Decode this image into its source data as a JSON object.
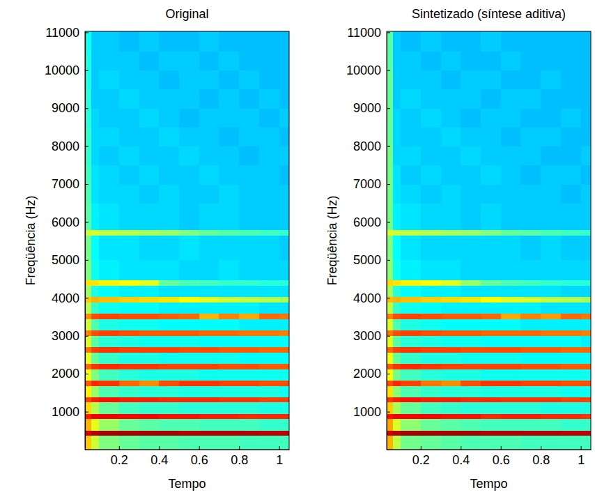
{
  "chart_data": [
    {
      "type": "heatmap",
      "title": "Original",
      "x_label": "Tempo",
      "y_label": "Freqüência (Hz)",
      "xlim": [
        0.03,
        1.05
      ],
      "ylim": [
        0,
        11025
      ],
      "xticks": [
        0.2,
        0.4,
        0.6,
        0.8,
        1
      ],
      "yticks": [
        1000,
        2000,
        3000,
        4000,
        5000,
        6000,
        7000,
        8000,
        9000,
        10000,
        11000
      ],
      "zlim": [
        -100,
        -20
      ],
      "x_edges": [
        0.03,
        0.06,
        0.1,
        0.2,
        0.3,
        0.4,
        0.5,
        0.6,
        0.7,
        0.8,
        0.9,
        1.0,
        1.05
      ],
      "y_edges": [
        0,
        370,
        510,
        810,
        950,
        1250,
        1390,
        1690,
        1830,
        2130,
        2270,
        2570,
        2710,
        3010,
        3150,
        3450,
        3590,
        3890,
        4030,
        4330,
        4470,
        5000,
        5650,
        5790,
        6500,
        7000,
        7500,
        8000,
        8500,
        9000,
        9500,
        10000,
        10500,
        11025
      ],
      "cells": [
        [
          -46,
          -54,
          -60,
          -62,
          -63,
          -63,
          -64,
          -64,
          -64,
          -65,
          -65,
          -65
        ],
        [
          -27,
          -24,
          -23,
          -23,
          -23,
          -23,
          -24,
          -24,
          -24,
          -24,
          -25,
          -25
        ],
        [
          -44,
          -52,
          -58,
          -62,
          -63,
          -64,
          -64,
          -65,
          -65,
          -65,
          -66,
          -66
        ],
        [
          -32,
          -29,
          -29,
          -30,
          -30,
          -31,
          -31,
          -32,
          -32,
          -33,
          -33,
          -33
        ],
        [
          -47,
          -56,
          -62,
          -65,
          -66,
          -66,
          -67,
          -67,
          -67,
          -67,
          -68,
          -68
        ],
        [
          -35,
          -32,
          -31,
          -32,
          -32,
          -33,
          -33,
          -33,
          -34,
          -34,
          -35,
          -35
        ],
        [
          -49,
          -58,
          -64,
          -66,
          -67,
          -67,
          -68,
          -68,
          -68,
          -68,
          -68,
          -69
        ],
        [
          -37,
          -33,
          -34,
          -38,
          -41,
          -36,
          -34,
          -34,
          -35,
          -35,
          -36,
          -36
        ],
        [
          -51,
          -60,
          -65,
          -67,
          -68,
          -68,
          -68,
          -69,
          -69,
          -69,
          -69,
          -69
        ],
        [
          -38,
          -34,
          -33,
          -34,
          -34,
          -35,
          -35,
          -35,
          -36,
          -36,
          -37,
          -37
        ],
        [
          -52,
          -62,
          -66,
          -68,
          -68,
          -69,
          -69,
          -69,
          -69,
          -70,
          -70,
          -70
        ],
        [
          -39,
          -35,
          -34,
          -35,
          -35,
          -35,
          -36,
          -36,
          -37,
          -37,
          -38,
          -38
        ],
        [
          -53,
          -63,
          -67,
          -68,
          -69,
          -69,
          -69,
          -70,
          -70,
          -70,
          -70,
          -70
        ],
        [
          -40,
          -36,
          -35,
          -36,
          -37,
          -37,
          -37,
          -38,
          -38,
          -39,
          -39,
          -40
        ],
        [
          -54,
          -64,
          -68,
          -69,
          -69,
          -70,
          -70,
          -70,
          -70,
          -71,
          -71,
          -71
        ],
        [
          -41,
          -36,
          -35,
          -36,
          -36,
          -37,
          -38,
          -44,
          -40,
          -43,
          -38,
          -39
        ],
        [
          -56,
          -66,
          -69,
          -70,
          -70,
          -71,
          -71,
          -71,
          -71,
          -71,
          -72,
          -72
        ],
        [
          -46,
          -44,
          -45,
          -46,
          -47,
          -48,
          -50,
          -52,
          -54,
          -55,
          -56,
          -57
        ],
        [
          -58,
          -68,
          -70,
          -71,
          -71,
          -72,
          -72,
          -72,
          -72,
          -72,
          -72,
          -72
        ],
        [
          -48,
          -48,
          -49,
          -50,
          -52,
          -62,
          -64,
          -65,
          -66,
          -66,
          -67,
          -67
        ],
        [
          -60,
          -69,
          -71,
          -72,
          -72,
          -72,
          -73,
          -73,
          -72,
          -73,
          -73,
          -73
        ],
        [
          -61,
          -70,
          -72,
          -72,
          -73,
          -73,
          -72,
          -73,
          -73,
          -73,
          -73,
          -74
        ],
        [
          -54,
          -53,
          -55,
          -56,
          -57,
          -58,
          -60,
          -62,
          -63,
          -64,
          -65,
          -66
        ],
        [
          -63,
          -71,
          -72,
          -73,
          -73,
          -73,
          -74,
          -73,
          -73,
          -74,
          -74,
          -74
        ],
        [
          -64,
          -72,
          -73,
          -73,
          -74,
          -73,
          -74,
          -74,
          -73,
          -74,
          -74,
          -74
        ],
        [
          -65,
          -72,
          -73,
          -74,
          -73,
          -74,
          -74,
          -73,
          -74,
          -74,
          -74,
          -75
        ],
        [
          -66,
          -73,
          -74,
          -73,
          -74,
          -74,
          -73,
          -74,
          -74,
          -75,
          -74,
          -74
        ],
        [
          -66,
          -73,
          -73,
          -74,
          -74,
          -73,
          -74,
          -74,
          -75,
          -74,
          -74,
          -75
        ],
        [
          -67,
          -73,
          -74,
          -74,
          -73,
          -74,
          -75,
          -74,
          -74,
          -74,
          -75,
          -74
        ],
        [
          -67,
          -74,
          -74,
          -73,
          -74,
          -74,
          -74,
          -75,
          -74,
          -75,
          -74,
          -75
        ],
        [
          -68,
          -74,
          -73,
          -74,
          -74,
          -75,
          -74,
          -74,
          -75,
          -74,
          -75,
          -75
        ],
        [
          -68,
          -74,
          -74,
          -74,
          -75,
          -74,
          -74,
          -75,
          -74,
          -75,
          -75,
          -75
        ],
        [
          -69,
          -74,
          -74,
          -75,
          -74,
          -75,
          -75,
          -74,
          -75,
          -75,
          -75,
          -75
        ]
      ]
    },
    {
      "type": "heatmap",
      "title": "Sintetizado (síntese aditiva)",
      "x_label": "Tempo",
      "y_label": "Freqüência (Hz)",
      "xlim": [
        0.03,
        1.05
      ],
      "ylim": [
        0,
        11025
      ],
      "xticks": [
        0.2,
        0.4,
        0.6,
        0.8,
        1
      ],
      "yticks": [
        1000,
        2000,
        3000,
        4000,
        5000,
        6000,
        7000,
        8000,
        9000,
        10000,
        11000
      ],
      "zlim": [
        -100,
        -20
      ],
      "x_edges": [
        0.03,
        0.06,
        0.1,
        0.2,
        0.3,
        0.4,
        0.5,
        0.6,
        0.7,
        0.8,
        0.9,
        1.0,
        1.05
      ],
      "y_edges": [
        0,
        370,
        510,
        810,
        950,
        1250,
        1390,
        1690,
        1830,
        2130,
        2270,
        2570,
        2710,
        3010,
        3150,
        3450,
        3590,
        3890,
        4030,
        4330,
        4470,
        5000,
        5650,
        5790,
        6500,
        7000,
        7500,
        8000,
        8500,
        9000,
        9500,
        10000,
        10500,
        11025
      ],
      "cells": [
        [
          -44,
          -55,
          -61,
          -62,
          -63,
          -64,
          -64,
          -64,
          -65,
          -65,
          -65,
          -65
        ],
        [
          -26,
          -24,
          -23,
          -23,
          -23,
          -23,
          -24,
          -24,
          -24,
          -24,
          -25,
          -25
        ],
        [
          -43,
          -53,
          -59,
          -62,
          -63,
          -64,
          -65,
          -65,
          -65,
          -65,
          -66,
          -66
        ],
        [
          -31,
          -29,
          -30,
          -30,
          -31,
          -31,
          -33,
          -32,
          -32,
          -33,
          -33,
          -34
        ],
        [
          -46,
          -57,
          -62,
          -65,
          -66,
          -67,
          -67,
          -67,
          -67,
          -68,
          -68,
          -68
        ],
        [
          -34,
          -32,
          -31,
          -32,
          -32,
          -33,
          -33,
          -34,
          -34,
          -34,
          -35,
          -35
        ],
        [
          -48,
          -59,
          -64,
          -66,
          -67,
          -67,
          -68,
          -68,
          -68,
          -68,
          -69,
          -69
        ],
        [
          -36,
          -33,
          -35,
          -39,
          -41,
          -36,
          -34,
          -34,
          -35,
          -35,
          -36,
          -36
        ],
        [
          -50,
          -61,
          -65,
          -67,
          -68,
          -68,
          -69,
          -69,
          -69,
          -69,
          -69,
          -69
        ],
        [
          -37,
          -34,
          -33,
          -34,
          -35,
          -35,
          -35,
          -35,
          -36,
          -36,
          -37,
          -37
        ],
        [
          -51,
          -62,
          -66,
          -68,
          -68,
          -69,
          -69,
          -69,
          -70,
          -70,
          -70,
          -70
        ],
        [
          -38,
          -35,
          -34,
          -35,
          -35,
          -36,
          -36,
          -36,
          -37,
          -37,
          -38,
          -38
        ],
        [
          -52,
          -63,
          -67,
          -68,
          -69,
          -69,
          -70,
          -70,
          -70,
          -70,
          -70,
          -71
        ],
        [
          -39,
          -36,
          -35,
          -36,
          -37,
          -37,
          -38,
          -38,
          -38,
          -39,
          -39,
          -40
        ],
        [
          -53,
          -64,
          -68,
          -69,
          -70,
          -70,
          -70,
          -70,
          -71,
          -71,
          -71,
          -71
        ],
        [
          -40,
          -36,
          -35,
          -36,
          -37,
          -37,
          -38,
          -43,
          -40,
          -42,
          -38,
          -39
        ],
        [
          -55,
          -66,
          -69,
          -70,
          -71,
          -71,
          -71,
          -71,
          -71,
          -72,
          -72,
          -72
        ],
        [
          -45,
          -44,
          -45,
          -46,
          -47,
          -48,
          -50,
          -52,
          -53,
          -55,
          -56,
          -57
        ],
        [
          -57,
          -67,
          -70,
          -71,
          -71,
          -72,
          -72,
          -72,
          -72,
          -72,
          -73,
          -73
        ],
        [
          -47,
          -48,
          -49,
          -50,
          -52,
          -58,
          -62,
          -64,
          -65,
          -66,
          -67,
          -67
        ],
        [
          -59,
          -69,
          -71,
          -72,
          -72,
          -73,
          -73,
          -73,
          -73,
          -73,
          -73,
          -73
        ],
        [
          -60,
          -70,
          -72,
          -73,
          -73,
          -73,
          -73,
          -73,
          -74,
          -73,
          -74,
          -74
        ],
        [
          -53,
          -54,
          -55,
          -56,
          -57,
          -58,
          -60,
          -62,
          -63,
          -64,
          -65,
          -66
        ],
        [
          -61,
          -71,
          -72,
          -73,
          -73,
          -74,
          -73,
          -74,
          -74,
          -74,
          -74,
          -74
        ],
        [
          -61,
          -72,
          -73,
          -74,
          -73,
          -74,
          -74,
          -74,
          -74,
          -74,
          -75,
          -74
        ],
        [
          -61,
          -72,
          -74,
          -73,
          -74,
          -74,
          -73,
          -74,
          -75,
          -74,
          -74,
          -75
        ],
        [
          -61,
          -73,
          -73,
          -74,
          -74,
          -73,
          -74,
          -74,
          -74,
          -75,
          -75,
          -74
        ],
        [
          -62,
          -73,
          -74,
          -74,
          -73,
          -74,
          -74,
          -75,
          -74,
          -74,
          -75,
          -75
        ],
        [
          -62,
          -73,
          -74,
          -73,
          -74,
          -75,
          -74,
          -74,
          -75,
          -75,
          -74,
          -75
        ],
        [
          -62,
          -74,
          -73,
          -74,
          -74,
          -74,
          -75,
          -74,
          -74,
          -75,
          -75,
          -75
        ],
        [
          -62,
          -74,
          -74,
          -74,
          -75,
          -74,
          -74,
          -75,
          -75,
          -74,
          -75,
          -75
        ],
        [
          -63,
          -74,
          -74,
          -75,
          -74,
          -75,
          -75,
          -74,
          -75,
          -75,
          -75,
          -75
        ],
        [
          -63,
          -74,
          -75,
          -74,
          -75,
          -75,
          -74,
          -75,
          -75,
          -75,
          -75,
          -75
        ]
      ]
    }
  ]
}
